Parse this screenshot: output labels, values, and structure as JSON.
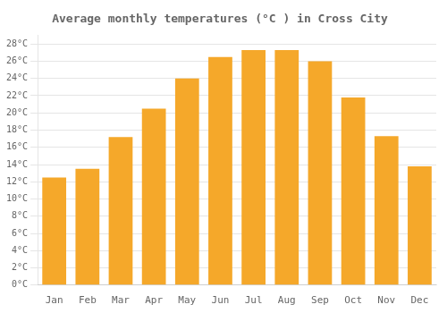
{
  "chart_data": {
    "type": "bar",
    "title": "Average monthly temperatures (°C ) in Cross City",
    "categories": [
      "Jan",
      "Feb",
      "Mar",
      "Apr",
      "May",
      "Jun",
      "Jul",
      "Aug",
      "Sep",
      "Oct",
      "Nov",
      "Dec"
    ],
    "values": [
      12.5,
      13.5,
      17.2,
      20.5,
      24.0,
      26.5,
      27.3,
      27.3,
      26.0,
      21.8,
      17.3,
      13.8
    ],
    "color": "#F5A82A",
    "ylim": [
      0,
      29
    ],
    "yticks": [
      {
        "value": 0,
        "label": "0°C"
      },
      {
        "value": 2,
        "label": "2°C"
      },
      {
        "value": 4,
        "label": "4°C"
      },
      {
        "value": 6,
        "label": "6°C"
      },
      {
        "value": 8,
        "label": "8°C"
      },
      {
        "value": 10,
        "label": "10°C"
      },
      {
        "value": 12,
        "label": "12°C"
      },
      {
        "value": 14,
        "label": "14°C"
      },
      {
        "value": 16,
        "label": "16°C"
      },
      {
        "value": 18,
        "label": "18°C"
      },
      {
        "value": 20,
        "label": "20°C"
      },
      {
        "value": 22,
        "label": "22°C"
      },
      {
        "value": 24,
        "label": "24°C"
      },
      {
        "value": 26,
        "label": "26°C"
      },
      {
        "value": 28,
        "label": "28°C"
      }
    ],
    "grid": true
  }
}
